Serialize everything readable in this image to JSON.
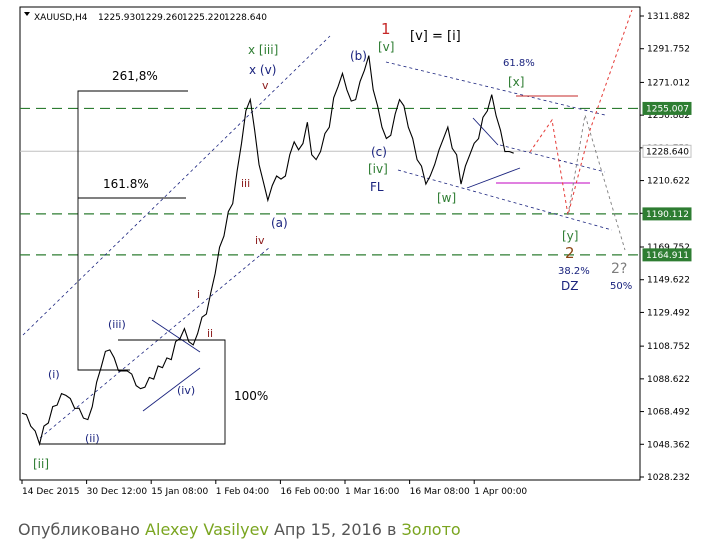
{
  "chart_data": {
    "type": "line",
    "header": {
      "symbol": "XAUUSD,H4",
      "open": "1225.930",
      "high": "1229.260",
      "low": "1225.220",
      "close": "1228.640"
    },
    "colors": {
      "price": "#000000",
      "level": "#2e7d32",
      "current": "#c0c0c0",
      "resistance": "#c62828",
      "support": "#c000c0",
      "channel": "#1a237e",
      "projection": "#e53935",
      "box": "#000000"
    },
    "x_labels": [
      "14 Dec 2015",
      "30 Dec 12:00",
      "15 Jan 08:00",
      "1 Feb 04:00",
      "16 Feb 00:00",
      "1 Mar 16:00",
      "16 Mar 08:00",
      "1 Apr 00:00"
    ],
    "y_ticks": [
      "1311.882",
      "1291.752",
      "1271.012",
      "1250.882",
      "1230.752",
      "1210.622",
      "1190.492",
      "1169.752",
      "1149.622",
      "1129.492",
      "1108.752",
      "1088.622",
      "1068.492",
      "1048.362",
      "1028.232"
    ],
    "price_path": [
      [
        0,
        1069
      ],
      [
        0.5,
        1065
      ],
      [
        1,
        1061
      ],
      [
        1.5,
        1055
      ],
      [
        2,
        1050
      ],
      [
        2.5,
        1058
      ],
      [
        3,
        1063
      ],
      [
        3.5,
        1070
      ],
      [
        4,
        1074
      ],
      [
        4.5,
        1078
      ],
      [
        5,
        1080
      ],
      [
        5.5,
        1075
      ],
      [
        6,
        1072
      ],
      [
        6.5,
        1069
      ],
      [
        7,
        1066
      ],
      [
        7.5,
        1062
      ],
      [
        8,
        1073
      ],
      [
        8.5,
        1085
      ],
      [
        9,
        1097
      ],
      [
        9.5,
        1104
      ],
      [
        10,
        1108
      ],
      [
        10.5,
        1100
      ],
      [
        11,
        1095
      ],
      [
        11.5,
        1092
      ],
      [
        12,
        1095
      ],
      [
        12.5,
        1090
      ],
      [
        13,
        1086
      ],
      [
        13.5,
        1081
      ],
      [
        14,
        1085
      ],
      [
        14.5,
        1088
      ],
      [
        15,
        1090
      ],
      [
        15.5,
        1095
      ],
      [
        16,
        1097
      ],
      [
        16.5,
        1100
      ],
      [
        17,
        1102
      ],
      [
        17.5,
        1110
      ],
      [
        18,
        1115
      ],
      [
        18.5,
        1118
      ],
      [
        19,
        1113
      ],
      [
        19.5,
        1108
      ],
      [
        20,
        1118
      ],
      [
        20.5,
        1125
      ],
      [
        21,
        1130
      ],
      [
        21.5,
        1140
      ],
      [
        22,
        1155
      ],
      [
        22.5,
        1168
      ],
      [
        23,
        1178
      ],
      [
        23.5,
        1190
      ],
      [
        24,
        1198
      ],
      [
        24.5,
        1215
      ],
      [
        25,
        1235
      ],
      [
        25.5,
        1252
      ],
      [
        26,
        1262
      ],
      [
        26.5,
        1240
      ],
      [
        27,
        1222
      ],
      [
        27.5,
        1208
      ],
      [
        28,
        1200
      ],
      [
        28.5,
        1206
      ],
      [
        29,
        1215
      ],
      [
        29.5,
        1210
      ],
      [
        30,
        1215
      ],
      [
        30.5,
        1225
      ],
      [
        31,
        1236
      ],
      [
        31.5,
        1228
      ],
      [
        32,
        1235
      ],
      [
        32.5,
        1245
      ],
      [
        33,
        1228
      ],
      [
        33.5,
        1222
      ],
      [
        34,
        1230
      ],
      [
        34.5,
        1238
      ],
      [
        35,
        1245
      ],
      [
        35.5,
        1260
      ],
      [
        36,
        1270
      ],
      [
        36.5,
        1275
      ],
      [
        37,
        1268
      ],
      [
        37.5,
        1258
      ],
      [
        38,
        1262
      ],
      [
        38.5,
        1270
      ],
      [
        39,
        1280
      ],
      [
        39.5,
        1286
      ],
      [
        40,
        1268
      ],
      [
        40.5,
        1255
      ],
      [
        41,
        1245
      ],
      [
        41.5,
        1235
      ],
      [
        42,
        1240
      ],
      [
        42.5,
        1250
      ],
      [
        43,
        1262
      ],
      [
        43.5,
        1255
      ],
      [
        44,
        1245
      ],
      [
        44.5,
        1235
      ],
      [
        45,
        1225
      ],
      [
        45.5,
        1218
      ],
      [
        46,
        1210
      ],
      [
        46.5,
        1212
      ],
      [
        47,
        1222
      ],
      [
        47.5,
        1228
      ],
      [
        48,
        1238
      ],
      [
        48.5,
        1242
      ],
      [
        49,
        1232
      ],
      [
        49.5,
        1225
      ],
      [
        50,
        1210
      ],
      [
        50.5,
        1218
      ],
      [
        51,
        1228
      ],
      [
        51.5,
        1232
      ],
      [
        52,
        1238
      ],
      [
        52.5,
        1248
      ],
      [
        53,
        1255
      ],
      [
        53.5,
        1262
      ],
      [
        54,
        1252
      ],
      [
        54.5,
        1240
      ],
      [
        55,
        1230
      ],
      [
        55.5,
        1227
      ],
      [
        56,
        1229
      ]
    ],
    "levels": [
      {
        "value": "1255.007",
        "kind": "level"
      },
      {
        "value": "1190.112",
        "kind": "level"
      },
      {
        "value": "1164.911",
        "kind": "level"
      },
      {
        "value": "1228.640",
        "kind": "current"
      }
    ],
    "annotations": {
      "fib_261": "261,8%",
      "fib_161": "161.8%",
      "fib_100": "100%",
      "fib_618": "61.8%",
      "fib_382": "38.2%",
      "fib_50": "50%",
      "w_x_iii": "x [iii]",
      "w_x_v": "x (v)",
      "w_v_small": "v",
      "w_iii_small": "iii",
      "w_iv_small": "iv",
      "w_i_small": "i",
      "w_ii_small": "ii",
      "w_a": "(a)",
      "w_b": "(b)",
      "w_c": "(c)",
      "w_one": "1",
      "w_v_bracket": "[v]",
      "w_v_eq_i": "[v] = [i]",
      "w_iv_bracket": "[iv]",
      "w_fl": "FL",
      "w_w": "[w]",
      "w_x": "[x]",
      "w_y": "[y]",
      "w_two": "2",
      "w_dz": "DZ",
      "w_two_q": "2?",
      "w_i_paren": "(i)",
      "w_ii_paren": "(ii)",
      "w_iii_paren": "(iii)",
      "w_iv_paren": "(iv)",
      "w_ii_bracket": "[ii]"
    }
  },
  "caption": {
    "prefix": "Опубликовано",
    "author": "Alexey Vasilyev",
    "date": "Апр 15, 2016",
    "in_word": "в",
    "category": "Золото"
  }
}
